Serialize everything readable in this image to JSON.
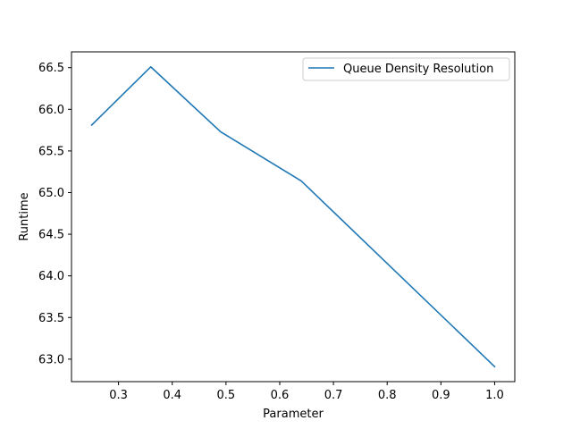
{
  "chart_data": {
    "type": "line",
    "title": "",
    "xlabel": "Parameter",
    "ylabel": "Runtime",
    "xlim": [
      0.2125,
      1.0375
    ],
    "ylim": [
      62.73,
      66.69
    ],
    "xticks": [
      0.3,
      0.4,
      0.5,
      0.6,
      0.7,
      0.8,
      0.9,
      1.0
    ],
    "xtick_labels": [
      "0.3",
      "0.4",
      "0.5",
      "0.6",
      "0.7",
      "0.8",
      "0.9",
      "1.0"
    ],
    "yticks": [
      63.0,
      63.5,
      64.0,
      64.5,
      65.0,
      65.5,
      66.0,
      66.5
    ],
    "ytick_labels": [
      "63.0",
      "63.5",
      "64.0",
      "64.5",
      "65.0",
      "65.5",
      "66.0",
      "66.5"
    ],
    "grid": false,
    "legend_position": "top-right",
    "series": [
      {
        "name": "Queue Density Resolution",
        "color": "#1f77b4",
        "x": [
          0.25,
          0.36,
          0.49,
          0.64,
          1.0
        ],
        "y": [
          65.81,
          66.51,
          65.73,
          65.14,
          62.91
        ]
      }
    ]
  }
}
